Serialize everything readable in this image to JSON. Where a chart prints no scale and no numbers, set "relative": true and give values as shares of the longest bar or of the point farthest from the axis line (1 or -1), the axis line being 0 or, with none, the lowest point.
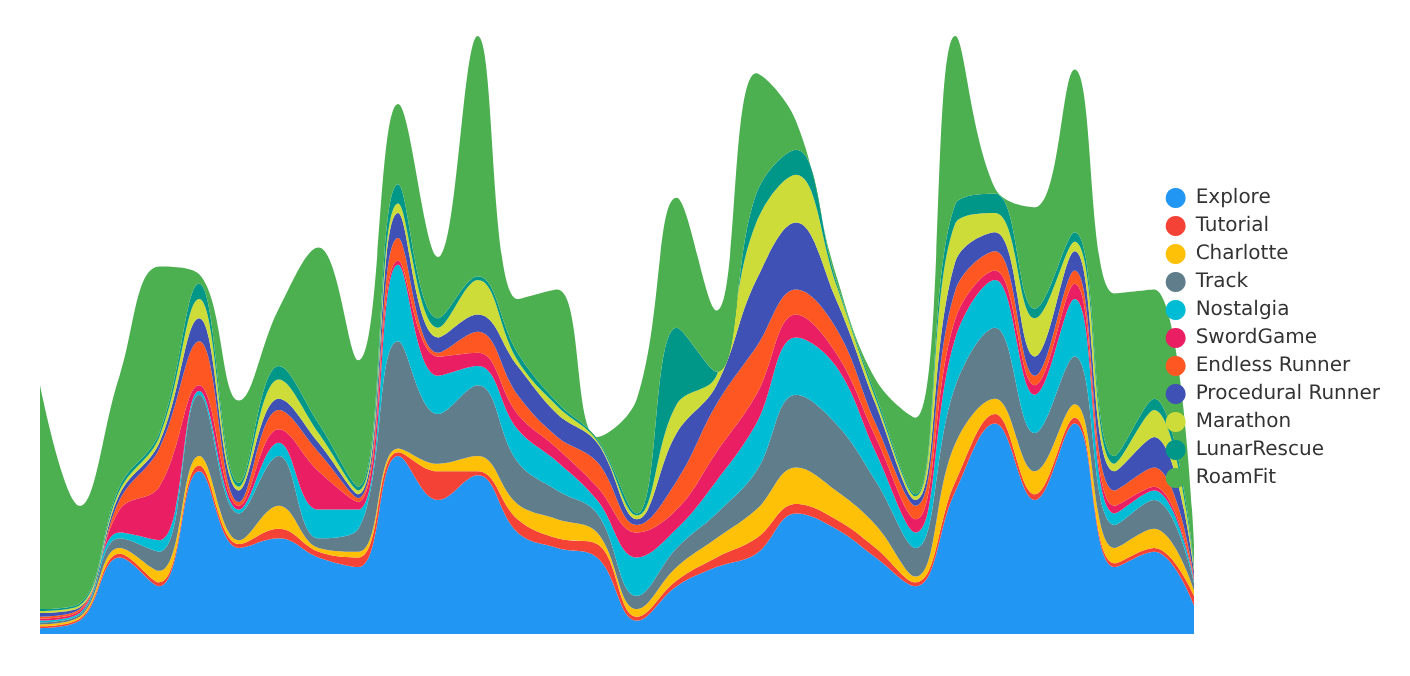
{
  "chart_data": {
    "type": "area",
    "stacked": true,
    "relative": true,
    "legend": "right",
    "categories": [
      null,
      null,
      null,
      null,
      null,
      null,
      null,
      null,
      null,
      null,
      null,
      null,
      null,
      null,
      null,
      null,
      null,
      null,
      null,
      null,
      null,
      null,
      null,
      null,
      null,
      null,
      null,
      null,
      null,
      null
    ],
    "series": [
      {
        "name": "Explore",
        "color": "#2196f3",
        "values": [
          0.0096,
          0.0224,
          0.128,
          0.08,
          0.272,
          0.144,
          0.16,
          0.128,
          0.112,
          0.2976,
          0.224,
          0.2656,
          0.1696,
          0.144,
          0.128,
          0.0224,
          0.08,
          0.112,
          0.1344,
          0.2016,
          0.176,
          0.128,
          0.08,
          0.2384,
          0.352,
          0.224,
          0.352,
          0.112,
          0.1376,
          0.048
        ]
      },
      {
        "name": "Tutorial",
        "color": "#f44336",
        "values": [
          0.0032,
          0.0032,
          0.0064,
          0.0064,
          0.0096,
          0.0064,
          0.016,
          0.0096,
          0.016,
          0.0064,
          0.048,
          0.0064,
          0.0224,
          0.016,
          0.0224,
          0.0064,
          0.0096,
          0.016,
          0.0256,
          0.016,
          0.016,
          0.016,
          0.0064,
          0.016,
          0.016,
          0.0096,
          0.0096,
          0.0064,
          0.0064,
          0.016
        ]
      },
      {
        "name": "Charlotte",
        "color": "#ffc107",
        "values": [
          0.0032,
          0.0032,
          0.0096,
          0.0192,
          0.016,
          0.0064,
          0.0384,
          0.0064,
          0.0096,
          0.0064,
          0.0128,
          0.0256,
          0.0256,
          0.032,
          0.0192,
          0.0128,
          0.0224,
          0.032,
          0.048,
          0.0608,
          0.048,
          0.0384,
          0.0096,
          0.064,
          0.0256,
          0.0384,
          0.0224,
          0.0256,
          0.032,
          0.0096
        ]
      },
      {
        "name": "Track",
        "color": "#607d8b",
        "values": [
          0.0032,
          0.0032,
          0.016,
          0.032,
          0.1024,
          0.0448,
          0.0832,
          0.016,
          0.0384,
          0.1792,
          0.0832,
          0.1184,
          0.0704,
          0.048,
          0.032,
          0.0224,
          0.032,
          0.0416,
          0.064,
          0.1216,
          0.112,
          0.0736,
          0.048,
          0.096,
          0.1184,
          0.064,
          0.08,
          0.0384,
          0.048,
          0.0128
        ]
      },
      {
        "name": "Nostalgia",
        "color": "#00bcd4",
        "values": [
          0.0032,
          0.0032,
          0.0096,
          0.0192,
          0.0064,
          0.0064,
          0.0224,
          0.048,
          0.032,
          0.128,
          0.064,
          0.032,
          0.0544,
          0.048,
          0.0224,
          0.064,
          0.032,
          0.0544,
          0.08,
          0.096,
          0.096,
          0.048,
          0.0256,
          0.08,
          0.08,
          0.064,
          0.096,
          0.0192,
          0.016,
          0.0032
        ]
      },
      {
        "name": "SwordGame",
        "color": "#e91e63",
        "values": [
          0.0032,
          0.0032,
          0.0384,
          0.0896,
          0.0096,
          0.0064,
          0.0224,
          0.064,
          0.0128,
          0.0064,
          0.032,
          0.0224,
          0.0256,
          0.0224,
          0.0224,
          0.0416,
          0.032,
          0.048,
          0.048,
          0.0384,
          0.0224,
          0.0256,
          0.0224,
          0.032,
          0.016,
          0.016,
          0.0256,
          0.0128,
          0.0064,
          0.0032
        ]
      },
      {
        "name": "Endless Runner",
        "color": "#ff5722",
        "values": [
          0.0032,
          0.0032,
          0.016,
          0.064,
          0.0736,
          0.0064,
          0.032,
          0.032,
          0.0064,
          0.0384,
          0.0064,
          0.0352,
          0.032,
          0.0192,
          0.0416,
          0.0128,
          0.048,
          0.08,
          0.08,
          0.0416,
          0.0416,
          0.0224,
          0.0224,
          0.048,
          0.032,
          0.016,
          0.0224,
          0.0256,
          0.032,
          0.0032
        ]
      },
      {
        "name": "Procedural Runner",
        "color": "#3f51b5",
        "values": [
          0.0064,
          0.0032,
          0.0096,
          0.0096,
          0.0384,
          0.0192,
          0.0192,
          0.016,
          0.0064,
          0.0416,
          0.0256,
          0.0288,
          0.048,
          0.0384,
          0.032,
          0.0096,
          0.08,
          0.032,
          0.112,
          0.112,
          0.048,
          0.032,
          0.0096,
          0.048,
          0.032,
          0.032,
          0.032,
          0.032,
          0.0512,
          0.0096
        ]
      },
      {
        "name": "Marathon",
        "color": "#cddc39",
        "values": [
          0.0032,
          0.0032,
          0.0064,
          0.0096,
          0.032,
          0.0064,
          0.032,
          0.016,
          0.0064,
          0.016,
          0.016,
          0.0576,
          0.0096,
          0.0128,
          0.0032,
          0.0064,
          0.048,
          0.016,
          0.096,
          0.08,
          0.0256,
          0.0096,
          0.0064,
          0.064,
          0.032,
          0.064,
          0.016,
          0.0128,
          0.0448,
          0.0064
        ]
      },
      {
        "name": "LunarRescue",
        "color": "#009688",
        "values": [
          0.0032,
          0.0032,
          0.0064,
          0.0064,
          0.0256,
          0.0064,
          0.0224,
          0.016,
          0.0064,
          0.032,
          0.016,
          0.0064,
          0.0128,
          0.0064,
          0.0032,
          0.0032,
          0.128,
          0.0064,
          0.048,
          0.0416,
          0.0064,
          0.0064,
          0.0032,
          0.032,
          0.032,
          0.016,
          0.016,
          0.0128,
          0.0192,
          0.0064
        ]
      },
      {
        "name": "RoamFit",
        "color": "#4caf50",
        "values": [
          0.3744,
          0.1632,
          0.1856,
          0.2784,
          0.016,
          0.1376,
          0.096,
          0.2944,
          0.2112,
          0.1344,
          0.1024,
          0.4016,
          0.0896,
          0.1888,
          0.0032,
          0.192,
          0.2176,
          0.1024,
          0.2016,
          0.048,
          0.0096,
          0.0256,
          0.128,
          0.2816,
          0.0096,
          0.1696,
          0.272,
          0.272,
          0.1824,
          0.032
        ]
      }
    ]
  }
}
